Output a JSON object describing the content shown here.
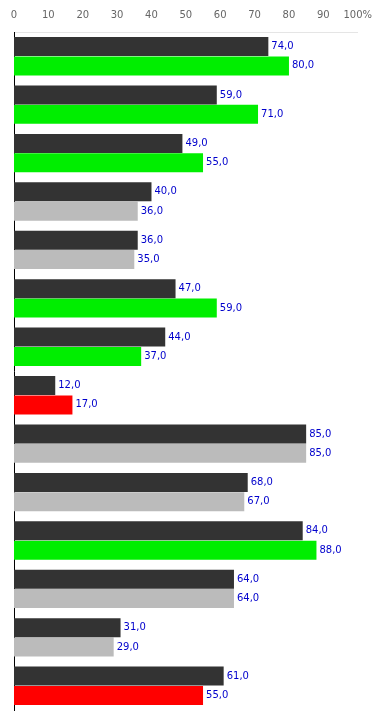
{
  "chart_data": {
    "type": "bar",
    "orientation": "horizontal",
    "categories": [
      null,
      null,
      null,
      null,
      null,
      null,
      null,
      null,
      null,
      null,
      null,
      null,
      null,
      null
    ],
    "series": [
      {
        "color": "#333333",
        "values": [
          74.0,
          59.0,
          49.0,
          40.0,
          36.0,
          47.0,
          44.0,
          12.0,
          85.0,
          68.0,
          84.0,
          64.0,
          31.0,
          61.0
        ],
        "value_labels": [
          "74,0",
          "59,0",
          "49,0",
          "40,0",
          "36,0",
          "47,0",
          "44,0",
          "12,0",
          "85,0",
          "68,0",
          "84,0",
          "64,0",
          "31,0",
          "61,0"
        ]
      },
      {
        "colors": [
          "#00ee00",
          "#00ee00",
          "#00ee00",
          "#bbbbbb",
          "#bbbbbb",
          "#00ee00",
          "#00ee00",
          "#ff0000",
          "#bbbbbb",
          "#bbbbbb",
          "#00ee00",
          "#bbbbbb",
          "#bbbbbb",
          "#ff0000"
        ],
        "values": [
          80.0,
          71.0,
          55.0,
          36.0,
          35.0,
          59.0,
          37.0,
          17.0,
          85.0,
          67.0,
          88.0,
          64.0,
          29.0,
          55.0
        ],
        "value_labels": [
          "80,0",
          "71,0",
          "55,0",
          "36,0",
          "35,0",
          "59,0",
          "37,0",
          "17,0",
          "85,0",
          "67,0",
          "88,0",
          "64,0",
          "29,0",
          "55,0"
        ]
      }
    ],
    "xlim": [
      0,
      100
    ],
    "xticks": [
      0,
      10,
      20,
      30,
      40,
      50,
      60,
      70,
      80,
      90,
      {
        "value": 100,
        "label": "100%"
      }
    ],
    "data_labels": true,
    "tick_labels": "x",
    "grid": false
  }
}
